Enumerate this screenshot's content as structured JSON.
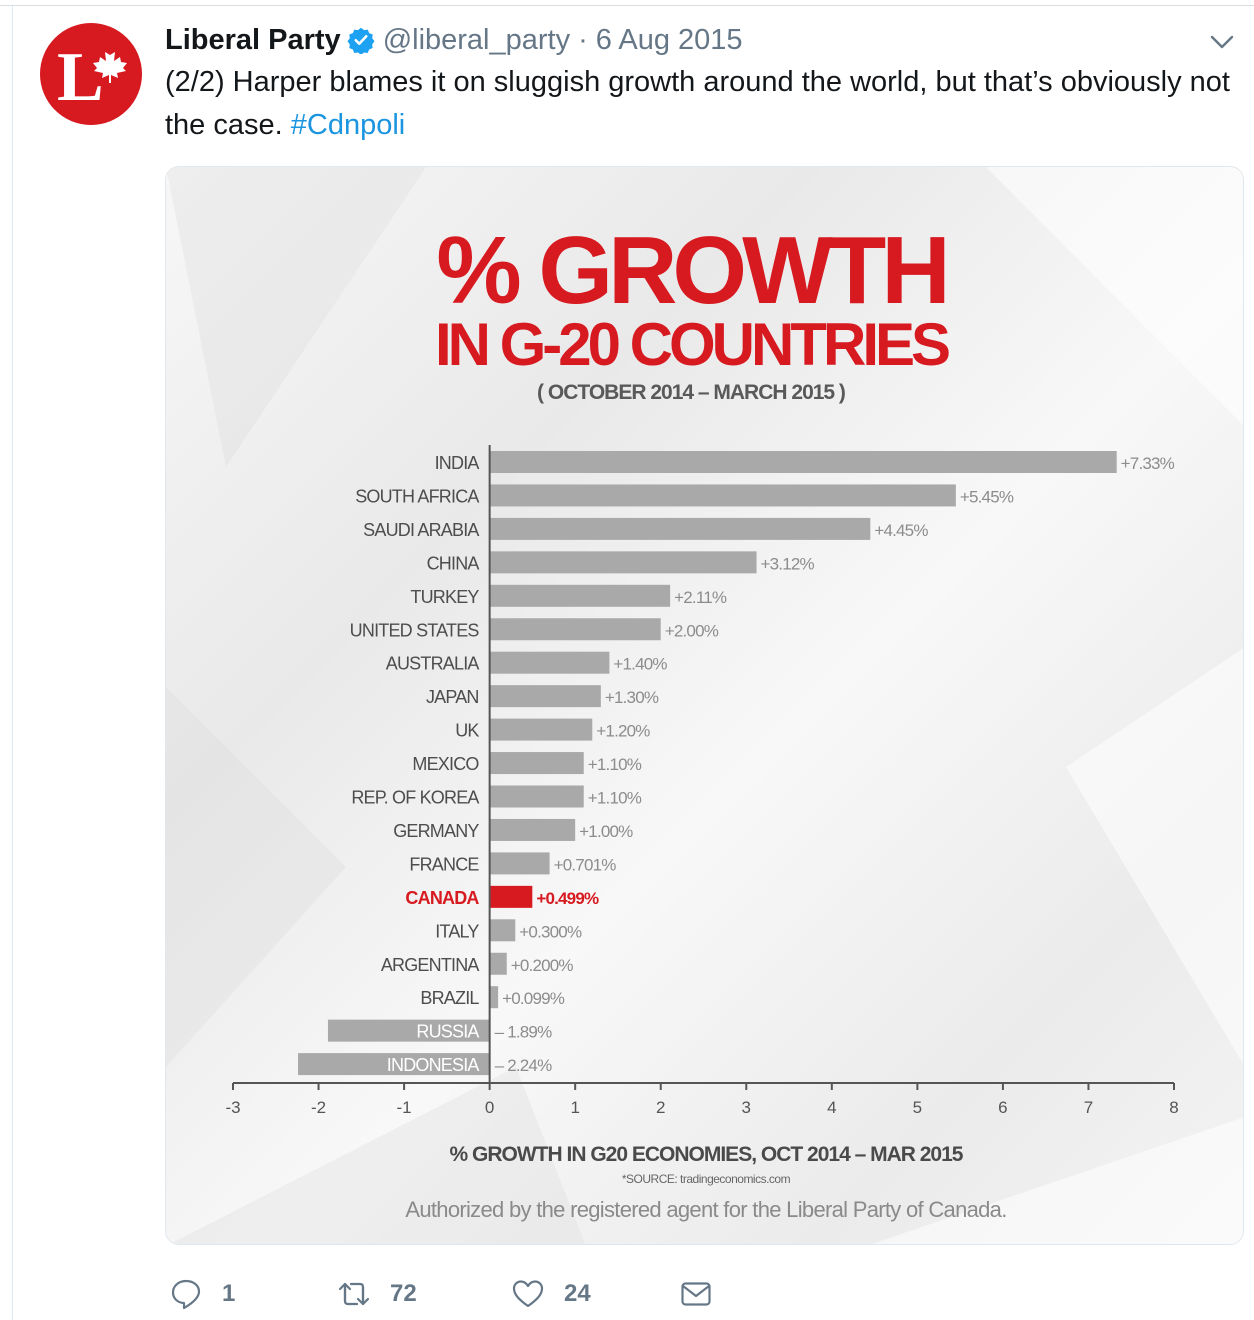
{
  "tweet": {
    "author_name": "Liberal Party",
    "handle": "@liberal_party",
    "separator": "·",
    "date": "6 Aug 2015",
    "text": "(2/2) Harper blames it on sluggish growth around the world, but that’s obviously not the case.",
    "hashtag": "#Cdnpoli"
  },
  "actions": {
    "reply_count": "1",
    "retweet_count": "72",
    "like_count": "24"
  },
  "colors": {
    "brand_red": "#d71920",
    "bar_gray": "#a9a9a9",
    "link_blue": "#1b95e0"
  },
  "chart_data": {
    "type": "bar",
    "orientation": "horizontal",
    "title": "% GROWTH",
    "subtitle": "IN G-20 COUNTRIES",
    "period": "( OCTOBER 2014 – MARCH 2015 )",
    "xlabel": "% GROWTH IN G20 ECONOMIES, OCT 2014 – MAR 2015",
    "source": "*SOURCE: tradingeconomics.com",
    "authorization": "Authorized by the registered agent for the Liberal Party of Canada.",
    "xlim": [
      -3,
      8
    ],
    "xticks": [
      "-3",
      "-2",
      "-1",
      "0",
      "1",
      "2",
      "3",
      "4",
      "5",
      "6",
      "7",
      "8"
    ],
    "highlight": "CANADA",
    "categories": [
      "INDIA",
      "SOUTH AFRICA",
      "SAUDI ARABIA",
      "CHINA",
      "TURKEY",
      "UNITED STATES",
      "AUSTRALIA",
      "JAPAN",
      "UK",
      "MEXICO",
      "REP. OF KOREA",
      "GERMANY",
      "FRANCE",
      "CANADA",
      "ITALY",
      "ARGENTINA",
      "BRAZIL",
      "RUSSIA",
      "INDONESIA"
    ],
    "values": [
      7.33,
      5.45,
      4.45,
      3.12,
      2.11,
      2.0,
      1.4,
      1.3,
      1.2,
      1.1,
      1.1,
      1.0,
      0.701,
      0.499,
      0.3,
      0.2,
      0.099,
      -1.89,
      -2.24
    ],
    "value_labels": [
      "+7.33%",
      "+5.45%",
      "+4.45%",
      "+3.12%",
      "+2.11%",
      "+2.00%",
      "+1.40%",
      "+1.30%",
      "+1.20%",
      "+1.10%",
      "+1.10%",
      "+1.00%",
      "+0.701%",
      "+0.499%",
      "+0.300%",
      "+0.200%",
      "+0.099%",
      "– 1.89%",
      "– 2.24%"
    ]
  }
}
